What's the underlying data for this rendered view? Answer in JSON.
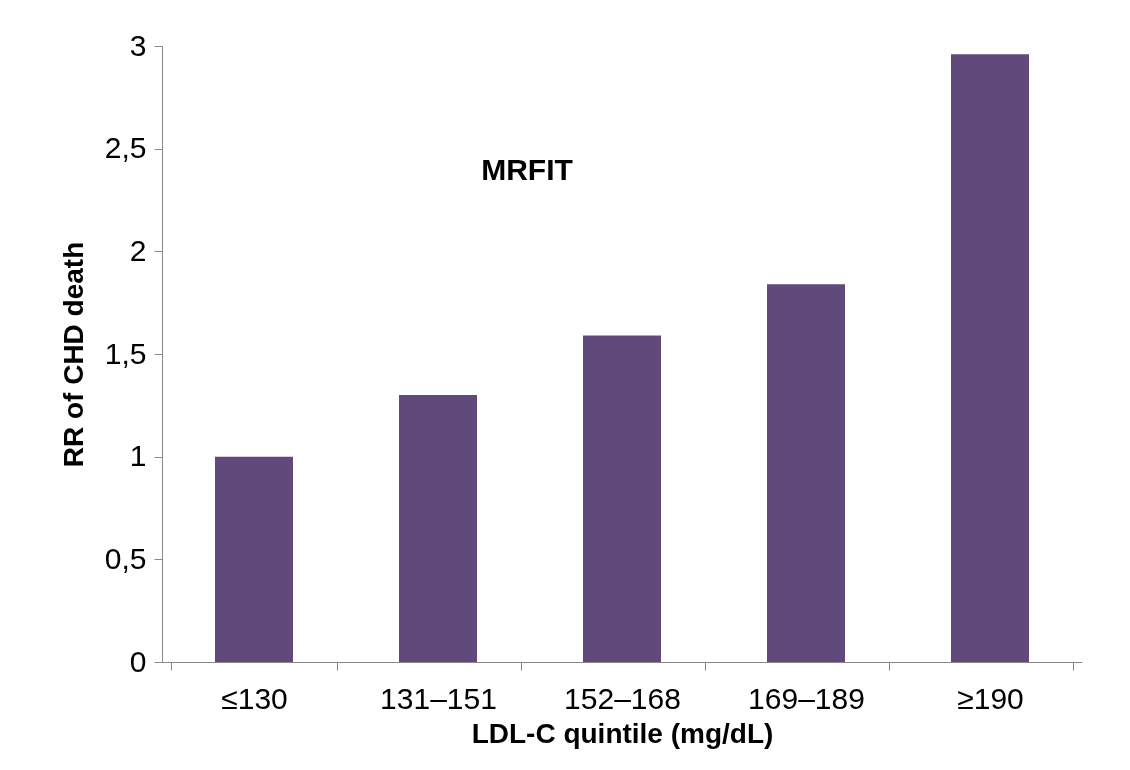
{
  "chart_data": {
    "type": "bar",
    "categories": [
      "≤130",
      "131–151",
      "152–168",
      "169–189",
      "≥190"
    ],
    "values": [
      1.0,
      1.3,
      1.59,
      1.84,
      2.96
    ],
    "color": "#604a7b",
    "xlabel": "LDL-C quintile (mg/dL)",
    "ylabel": "RR of CHD death",
    "annotations": [
      "MRFIT"
    ],
    "ylim": [
      0,
      3
    ],
    "yticks": [
      0,
      {
        "value": 0.5,
        "label": "0,5"
      },
      1,
      {
        "value": 1.5,
        "label": "1,5"
      },
      2,
      {
        "value": 2.5,
        "label": "2,5"
      },
      3
    ],
    "grid": false
  }
}
